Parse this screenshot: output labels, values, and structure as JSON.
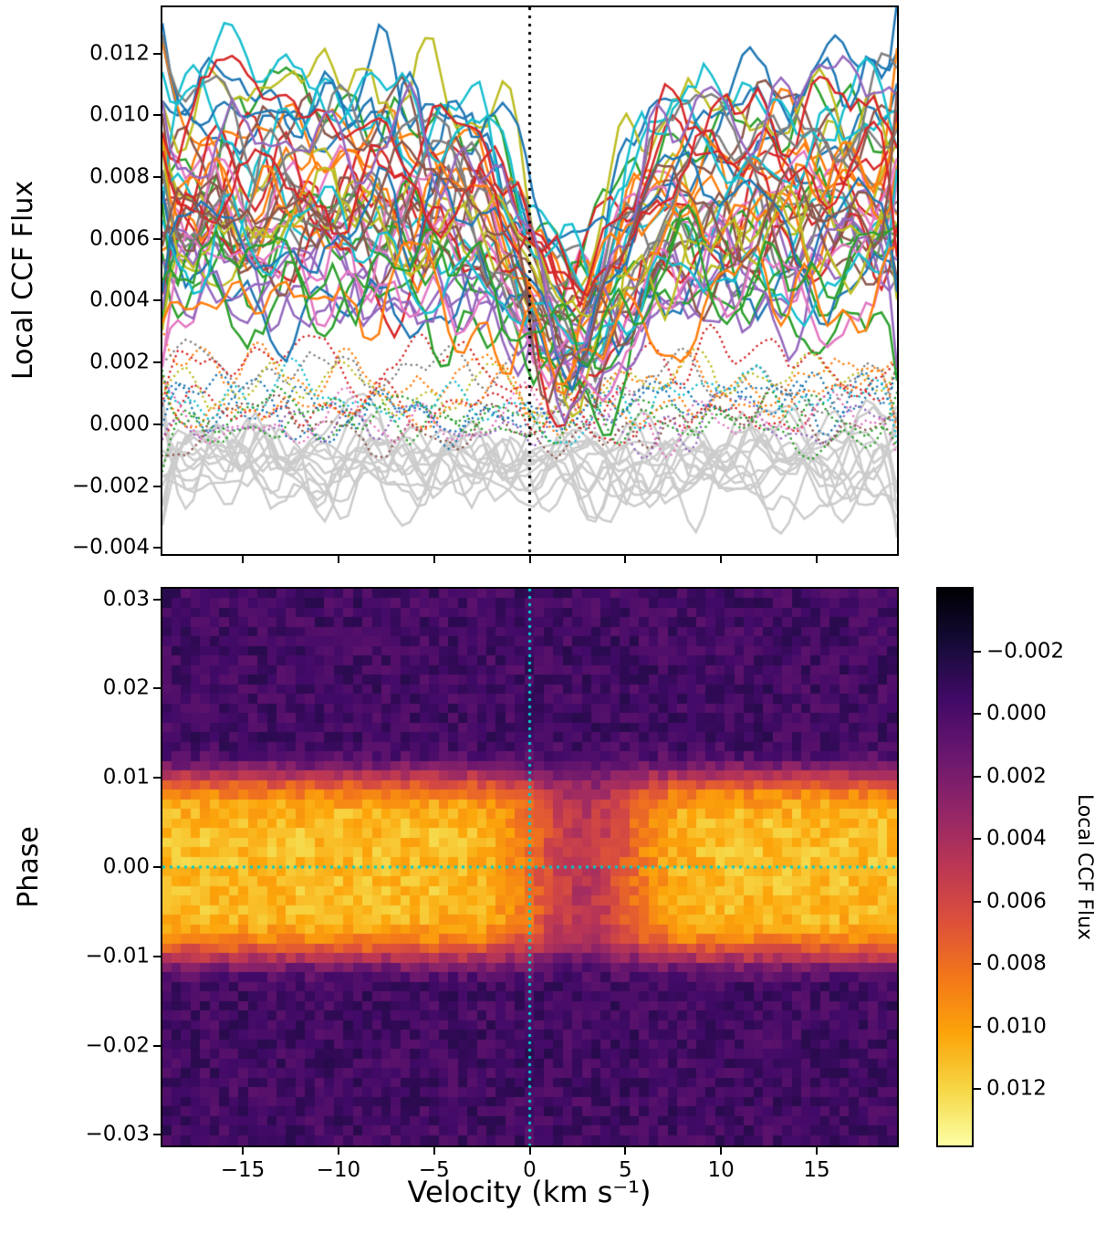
{
  "figure": {
    "background": "#ffffff",
    "description": "Two-panel astronomy figure: stacked local CCF line profiles (top) and phase-velocity flux map with colorbar (bottom)"
  },
  "chart_data": [
    {
      "type": "line",
      "panel": "top",
      "title": "",
      "xlabel": "",
      "ylabel": "Local CCF Flux",
      "xlim": [
        -19.2,
        19.2
      ],
      "ylim": [
        -0.0042,
        0.0135
      ],
      "n_points": 96,
      "seed": 42,
      "x_tick_labels_visible": false,
      "x_ticks": [
        {
          "value": -15,
          "label": "−15"
        },
        {
          "value": -10,
          "label": "−10"
        },
        {
          "value": -5,
          "label": "−5"
        },
        {
          "value": 0,
          "label": "0"
        },
        {
          "value": 5,
          "label": "5"
        },
        {
          "value": 10,
          "label": "10"
        },
        {
          "value": 15,
          "label": "15"
        }
      ],
      "y_ticks": [
        {
          "value": 0.012,
          "label": "0.012"
        },
        {
          "value": 0.01,
          "label": "0.010"
        },
        {
          "value": 0.008,
          "label": "0.008"
        },
        {
          "value": 0.006,
          "label": "0.006"
        },
        {
          "value": 0.004,
          "label": "0.004"
        },
        {
          "value": 0.002,
          "label": "0.002"
        },
        {
          "value": 0.0,
          "label": "0.000"
        },
        {
          "value": -0.002,
          "label": "−0.002"
        },
        {
          "value": -0.004,
          "label": "−0.004"
        }
      ],
      "vline": {
        "x": 0,
        "color": "#000000",
        "style": "dotted",
        "linewidth": 3
      },
      "series_groups": [
        {
          "name": "continuum-gray-ccfs",
          "style": "solid",
          "linewidth": 2.5,
          "count": 13,
          "palette": [
            "#cccccc"
          ],
          "baseline": [
            -0.0018,
            -0.0006
          ],
          "noise": 0.0009,
          "dip": null
        },
        {
          "name": "low-flux-dotted-ccfs",
          "style": "dotted",
          "linewidth": 2.6,
          "count": 14,
          "palette": [
            "#1f77b4",
            "#ff7f0e",
            "#2ca02c",
            "#d62728",
            "#9467bd",
            "#8c564b",
            "#e377c2",
            "#7f7f7f",
            "#bcbd22",
            "#17becf"
          ],
          "baseline": [
            -0.0002,
            0.0024
          ],
          "noise": 0.0007,
          "dip": {
            "center": 2.2,
            "width": 3.3,
            "depth": 0.5
          }
        },
        {
          "name": "in-transit-local-ccfs",
          "style": "solid",
          "linewidth": 2.5,
          "count": 46,
          "palette": [
            "#1f77b4",
            "#ff7f0e",
            "#2ca02c",
            "#d62728",
            "#9467bd",
            "#8c564b",
            "#e377c2",
            "#7f7f7f",
            "#bcbd22",
            "#17becf"
          ],
          "baseline": [
            0.004,
            0.0108
          ],
          "noise": 0.0013,
          "dip": {
            "center": 2.2,
            "width": 3.3,
            "depth_range": [
              0.35,
              0.75
            ]
          }
        }
      ]
    },
    {
      "type": "heatmap",
      "panel": "bottom",
      "title": "",
      "xlabel": "Velocity (km s⁻¹)",
      "ylabel": "Phase",
      "xlim": [
        -19.2,
        19.2
      ],
      "ylim": [
        -0.0312,
        0.0312
      ],
      "seed": 7,
      "grid": {
        "cols": 77,
        "rows": 58
      },
      "x_ticks": [
        {
          "value": -15,
          "label": "−15"
        },
        {
          "value": -10,
          "label": "−10"
        },
        {
          "value": -5,
          "label": "−5"
        },
        {
          "value": 0,
          "label": "0"
        },
        {
          "value": 5,
          "label": "5"
        },
        {
          "value": 10,
          "label": "10"
        },
        {
          "value": 15,
          "label": "15"
        }
      ],
      "y_ticks": [
        {
          "value": 0.03,
          "label": "0.03"
        },
        {
          "value": 0.02,
          "label": "0.02"
        },
        {
          "value": 0.01,
          "label": "0.01"
        },
        {
          "value": 0.0,
          "label": "0.00"
        },
        {
          "value": -0.01,
          "label": "−0.01"
        },
        {
          "value": -0.02,
          "label": "−0.02"
        },
        {
          "value": -0.03,
          "label": "−0.03"
        }
      ],
      "value_range": [
        -0.004,
        0.0138
      ],
      "colormap": "inferno",
      "colormap_stops": [
        [
          0.0,
          "#000004"
        ],
        [
          0.1,
          "#160b39"
        ],
        [
          0.2,
          "#420a68"
        ],
        [
          0.3,
          "#6a176e"
        ],
        [
          0.4,
          "#932667"
        ],
        [
          0.5,
          "#bc3754"
        ],
        [
          0.6,
          "#dd513a"
        ],
        [
          0.7,
          "#f37819"
        ],
        [
          0.8,
          "#fca50a"
        ],
        [
          0.9,
          "#f6d746"
        ],
        [
          1.0,
          "#fcffa4"
        ]
      ],
      "model": {
        "base_level": -0.0004,
        "band_amplitude": 0.0115,
        "band_halfwidth": 0.0105,
        "band_exponent": 6,
        "noise": 0.0011,
        "absorption": {
          "center": 2.8,
          "width": 3.2,
          "depth": 0.55
        }
      },
      "crosshair": {
        "x": 0,
        "y": 0,
        "color": "#00cdcd",
        "style": "dotted",
        "linewidth": 3
      },
      "colorbar": {
        "label": "Local CCF Flux",
        "values_increase_downward": true,
        "ticks": [
          {
            "value": -0.002,
            "label": "−0.002"
          },
          {
            "value": 0.0,
            "label": "0.000"
          },
          {
            "value": 0.002,
            "label": "0.002"
          },
          {
            "value": 0.004,
            "label": "0.004"
          },
          {
            "value": 0.006,
            "label": "0.006"
          },
          {
            "value": 0.008,
            "label": "0.008"
          },
          {
            "value": 0.01,
            "label": "0.010"
          },
          {
            "value": 0.012,
            "label": "0.012"
          }
        ]
      }
    }
  ]
}
